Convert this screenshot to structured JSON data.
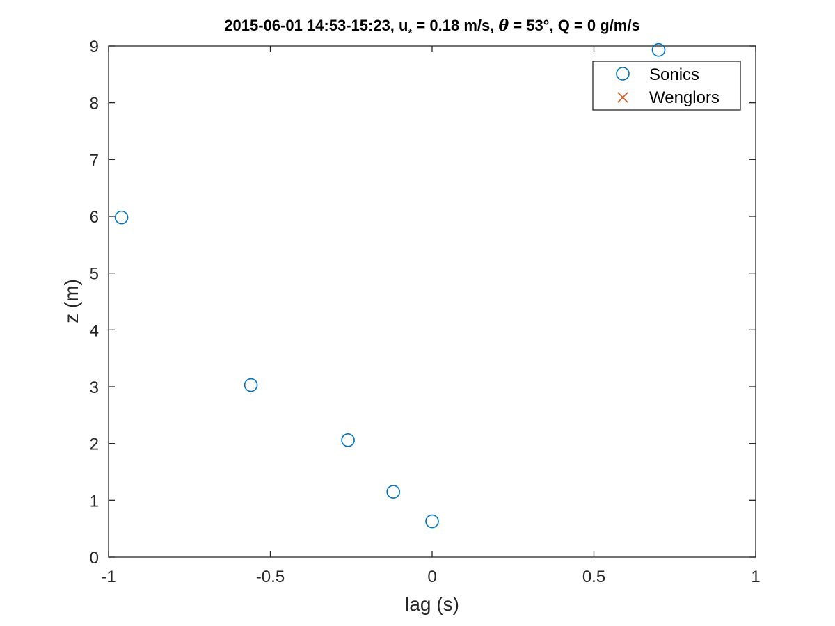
{
  "chart_data": {
    "type": "scatter",
    "title_parts": {
      "main": "2015-06-01 14:53-15:23, u",
      "subscript": "*",
      "mid": " = 0.18 m/s, ",
      "theta": "θ",
      "tail": " = 53°, Q = 0 g/m/s"
    },
    "xlabel": "lag (s)",
    "ylabel": "z (m)",
    "xlim": [
      -1,
      1
    ],
    "ylim": [
      0,
      9
    ],
    "xticks": [
      "-1",
      "-0.5",
      "0",
      "0.5",
      "1"
    ],
    "yticks": [
      "0",
      "1",
      "2",
      "3",
      "4",
      "5",
      "6",
      "7",
      "8",
      "9"
    ],
    "grid": false,
    "legend_position": "top-right",
    "series": [
      {
        "name": "Sonics",
        "marker": "circle",
        "color": "#0072BD",
        "points": [
          {
            "x": -0.96,
            "y": 5.98
          },
          {
            "x": -0.56,
            "y": 3.03
          },
          {
            "x": -0.26,
            "y": 2.06
          },
          {
            "x": -0.12,
            "y": 1.15
          },
          {
            "x": 0.0,
            "y": 0.63
          },
          {
            "x": 0.7,
            "y": 8.93
          }
        ]
      },
      {
        "name": "Wenglors",
        "marker": "x",
        "color": "#D95319",
        "points": []
      }
    ]
  }
}
